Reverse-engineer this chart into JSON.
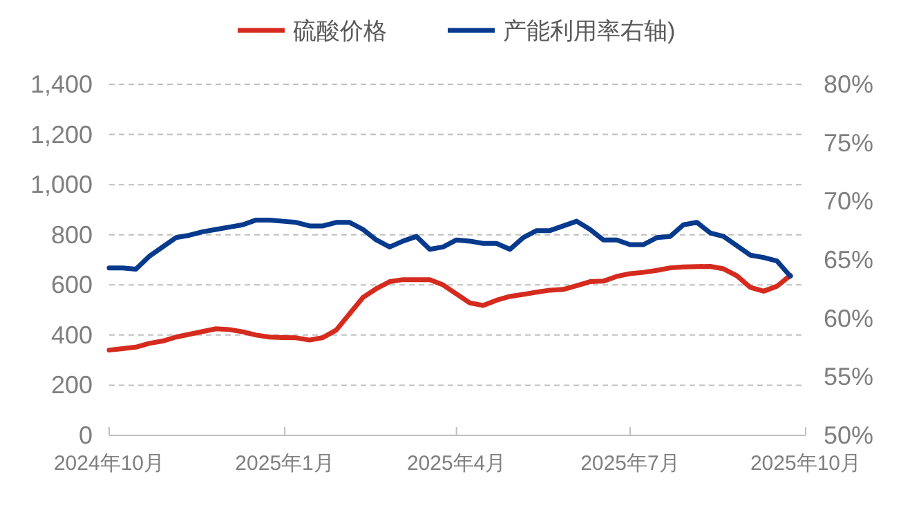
{
  "chart_data": {
    "type": "line",
    "x": [
      "2024-10-01",
      "2024-10-08",
      "2024-10-15",
      "2024-10-22",
      "2024-10-29",
      "2024-11-05",
      "2024-11-12",
      "2024-11-19",
      "2024-11-26",
      "2024-12-03",
      "2024-12-10",
      "2024-12-17",
      "2024-12-24",
      "2024-12-31",
      "2025-01-07",
      "2025-01-14",
      "2025-01-21",
      "2025-01-28",
      "2025-02-04",
      "2025-02-11",
      "2025-02-18",
      "2025-02-25",
      "2025-03-04",
      "2025-03-11",
      "2025-03-18",
      "2025-03-25",
      "2025-04-01",
      "2025-04-08",
      "2025-04-15",
      "2025-04-22",
      "2025-04-29",
      "2025-05-06",
      "2025-05-13",
      "2025-05-20",
      "2025-05-27",
      "2025-06-03",
      "2025-06-10",
      "2025-06-17",
      "2025-06-24",
      "2025-07-01",
      "2025-07-08",
      "2025-07-15",
      "2025-07-22",
      "2025-07-29",
      "2025-08-05",
      "2025-08-12",
      "2025-08-19",
      "2025-08-26",
      "2025-09-02",
      "2025-09-09",
      "2025-09-16",
      "2025-09-23"
    ],
    "series": [
      {
        "name": "硫酸价格",
        "color": "#d52b1e",
        "values": [
          340,
          346,
          352,
          367,
          376,
          392,
          403,
          414,
          425,
          422,
          413,
          400,
          392,
          390,
          389,
          380,
          390,
          420,
          485,
          550,
          585,
          613,
          621,
          621,
          621,
          600,
          564,
          528,
          518,
          539,
          554,
          562,
          571,
          579,
          582,
          597,
          613,
          615,
          634,
          645,
          650,
          658,
          668,
          672,
          673,
          674,
          664,
          636,
          590,
          575,
          595,
          638
        ]
      },
      {
        "name": "产能利用率右轴)",
        "color": "#073a8c",
        "axis": "y2",
        "values": [
          64.3,
          64.3,
          64.2,
          65.3,
          66.1,
          66.9,
          67.1,
          67.4,
          67.6,
          67.8,
          68.0,
          68.4,
          68.4,
          68.3,
          68.2,
          67.9,
          67.9,
          68.2,
          68.2,
          67.6,
          66.7,
          66.1,
          66.6,
          67.0,
          65.9,
          66.1,
          66.7,
          66.6,
          66.4,
          66.4,
          65.9,
          66.9,
          67.5,
          67.5,
          67.9,
          68.3,
          67.6,
          66.7,
          66.7,
          66.3,
          66.3,
          66.9,
          67.0,
          68.0,
          68.2,
          67.3,
          67.0,
          66.2,
          65.4,
          65.2,
          64.9,
          63.6
        ]
      }
    ],
    "xlim": [
      "2024-10-01",
      "2025-10-01"
    ],
    "xticks": [
      {
        "value": "2024-10-01",
        "label": "2024年10月"
      },
      {
        "value": "2025-01-01",
        "label": "2025年1月"
      },
      {
        "value": "2025-04-01",
        "label": "2025年4月"
      },
      {
        "value": "2025-07-01",
        "label": "2025年7月"
      },
      {
        "value": "2025-10-01",
        "label": "2025年10月"
      }
    ],
    "ylim": [
      0,
      1400
    ],
    "yticks": [
      {
        "value": 0,
        "label": "0"
      },
      {
        "value": 200,
        "label": "200"
      },
      {
        "value": 400,
        "label": "400"
      },
      {
        "value": 600,
        "label": "600"
      },
      {
        "value": 800,
        "label": "800"
      },
      {
        "value": 1000,
        "label": "1,000"
      },
      {
        "value": 1200,
        "label": "1,200"
      },
      {
        "value": 1400,
        "label": "1,400"
      }
    ],
    "y2lim": [
      50,
      80
    ],
    "y2ticks": [
      {
        "value": 50,
        "label": "50%"
      },
      {
        "value": 55,
        "label": "55%"
      },
      {
        "value": 60,
        "label": "60%"
      },
      {
        "value": 65,
        "label": "65%"
      },
      {
        "value": 70,
        "label": "70%"
      },
      {
        "value": 75,
        "label": "75%"
      },
      {
        "value": 80,
        "label": "80%"
      }
    ],
    "grid": "y",
    "legend": "top",
    "marker": "none",
    "line_style": "solid"
  }
}
